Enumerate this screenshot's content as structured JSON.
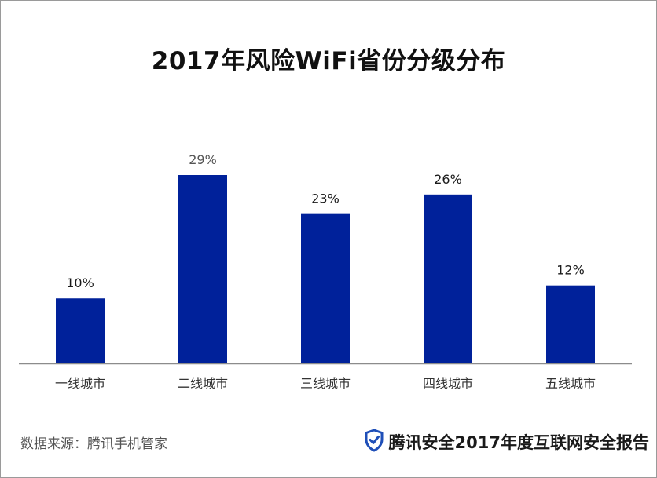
{
  "chart_data": {
    "type": "bar",
    "title": "2017年风险WiFi省份分级分布",
    "categories": [
      "一线城市",
      "二线城市",
      "三线城市",
      "四线城市",
      "五线城市"
    ],
    "values": [
      10,
      29,
      23,
      26,
      12
    ],
    "data_labels": [
      "10%",
      "29%",
      "23%",
      "26%",
      "12%"
    ],
    "value_unit": "%",
    "ylim": [
      0,
      32
    ],
    "grid": false,
    "legend": "none",
    "bar_color": "#00219A",
    "axis_color": "#8c8c8c"
  },
  "footer": {
    "source": "数据来源：腾讯手机管家",
    "brand_text": "腾讯安全2017年度互联网安全报告",
    "brand_icon": "shield-check-icon",
    "brand_icon_color": "#1F4FB8"
  }
}
